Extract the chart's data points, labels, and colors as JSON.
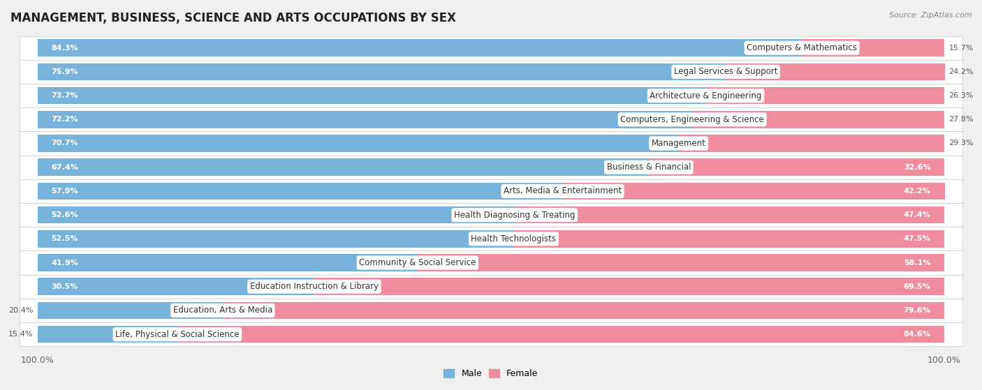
{
  "title": "MANAGEMENT, BUSINESS, SCIENCE AND ARTS OCCUPATIONS BY SEX",
  "source": "Source: ZipAtlas.com",
  "categories": [
    "Computers & Mathematics",
    "Legal Services & Support",
    "Architecture & Engineering",
    "Computers, Engineering & Science",
    "Management",
    "Business & Financial",
    "Arts, Media & Entertainment",
    "Health Diagnosing & Treating",
    "Health Technologists",
    "Community & Social Service",
    "Education Instruction & Library",
    "Education, Arts & Media",
    "Life, Physical & Social Science"
  ],
  "male_pct": [
    84.3,
    75.9,
    73.7,
    72.2,
    70.7,
    67.4,
    57.9,
    52.6,
    52.5,
    41.9,
    30.5,
    20.4,
    15.4
  ],
  "female_pct": [
    15.7,
    24.2,
    26.3,
    27.8,
    29.3,
    32.6,
    42.2,
    47.4,
    47.5,
    58.1,
    69.5,
    79.6,
    84.6
  ],
  "male_color": "#7ab3d9",
  "female_color": "#f08ca0",
  "bg_color": "#f0f0f0",
  "row_bg_odd": "#f8f8f8",
  "row_bg_even": "#ffffff",
  "title_fontsize": 12,
  "label_fontsize": 8.5,
  "bar_height": 0.72
}
